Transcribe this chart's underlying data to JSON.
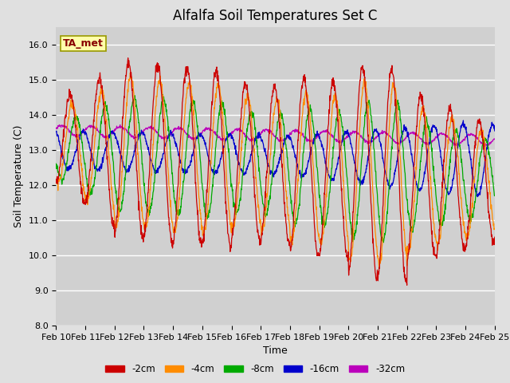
{
  "title": "Alfalfa Soil Temperatures Set C",
  "xlabel": "Time",
  "ylabel": "Soil Temperature (C)",
  "ylim": [
    8.0,
    16.5
  ],
  "yticks": [
    8.0,
    9.0,
    10.0,
    11.0,
    12.0,
    13.0,
    14.0,
    15.0,
    16.0
  ],
  "colors": {
    "-2cm": "#CC0000",
    "-4cm": "#FF8C00",
    "-8cm": "#00AA00",
    "-16cm": "#0000CC",
    "-32cm": "#BB00BB"
  },
  "legend_labels": [
    "-2cm",
    "-4cm",
    "-8cm",
    "-16cm",
    "-32cm"
  ],
  "background_color": "#E0E0E0",
  "plot_bg_color": "#D0D0D0",
  "ta_met_box_color": "#FFFFAA",
  "ta_met_text_color": "#880000",
  "title_fontsize": 12,
  "axis_label_fontsize": 9,
  "tick_fontsize": 8
}
